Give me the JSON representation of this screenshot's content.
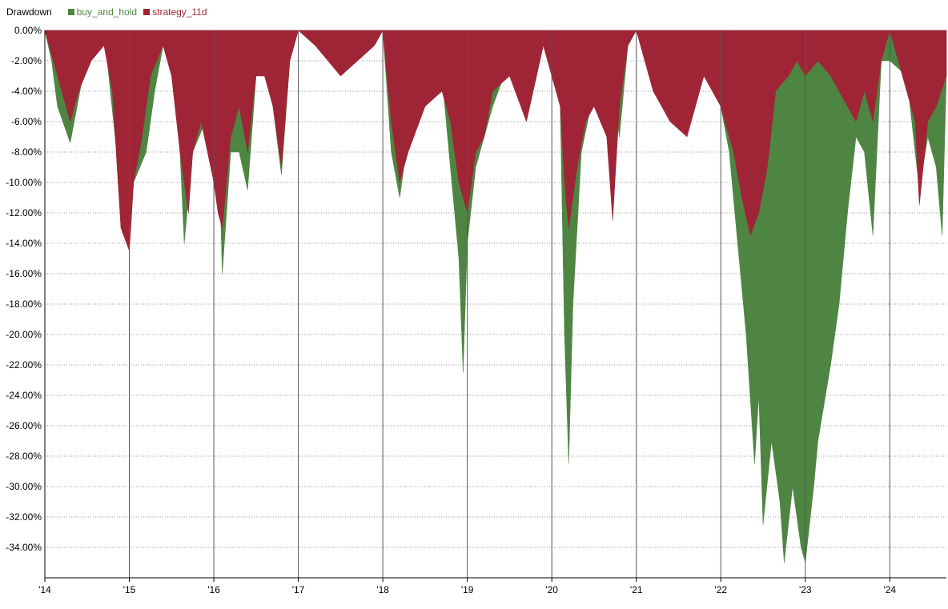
{
  "chart_data": {
    "type": "area",
    "title": "Drawdown",
    "xlabel": "",
    "ylabel": "",
    "x_tick_labels": [
      "'14",
      "'15",
      "'16",
      "'17",
      "'18",
      "'19",
      "'20",
      "'21",
      "'22",
      "'23",
      "'24"
    ],
    "x_range": [
      2014.0,
      2024.67
    ],
    "ylim": [
      -36,
      0
    ],
    "y_tick_step": 2,
    "grid": "horizontal dotted, vertical solid at year marks",
    "legend_placement": "top-left",
    "series": [
      {
        "name": "buy_and_hold",
        "color": "#4e8542",
        "points": [
          [
            2014.0,
            0
          ],
          [
            2014.08,
            -2
          ],
          [
            2014.15,
            -5
          ],
          [
            2014.3,
            -7.4
          ],
          [
            2014.45,
            -3
          ],
          [
            2014.6,
            -1
          ],
          [
            2014.7,
            0
          ],
          [
            2014.85,
            -8
          ],
          [
            2014.95,
            -13
          ],
          [
            2015.0,
            -14.5
          ],
          [
            2015.05,
            -10
          ],
          [
            2015.2,
            -8
          ],
          [
            2015.3,
            -4
          ],
          [
            2015.4,
            -1
          ],
          [
            2015.5,
            -2
          ],
          [
            2015.6,
            -8
          ],
          [
            2015.65,
            -14
          ],
          [
            2015.75,
            -8
          ],
          [
            2015.9,
            -6
          ],
          [
            2016.0,
            -10
          ],
          [
            2016.08,
            -12
          ],
          [
            2016.1,
            -16
          ],
          [
            2016.2,
            -8
          ],
          [
            2016.3,
            -8
          ],
          [
            2016.4,
            -10.5
          ],
          [
            2016.5,
            -3
          ],
          [
            2016.6,
            -2
          ],
          [
            2016.7,
            -5
          ],
          [
            2016.8,
            -9.5
          ],
          [
            2016.9,
            -2
          ],
          [
            2017.0,
            0
          ],
          [
            2017.3,
            -1
          ],
          [
            2017.5,
            -3
          ],
          [
            2017.7,
            -2
          ],
          [
            2017.9,
            -1
          ],
          [
            2018.0,
            0
          ],
          [
            2018.1,
            -8
          ],
          [
            2018.2,
            -11
          ],
          [
            2018.3,
            -7
          ],
          [
            2018.5,
            -5
          ],
          [
            2018.7,
            -3
          ],
          [
            2018.8,
            -9
          ],
          [
            2018.9,
            -15
          ],
          [
            2018.95,
            -22.5
          ],
          [
            2019.0,
            -14
          ],
          [
            2019.1,
            -9
          ],
          [
            2019.3,
            -5
          ],
          [
            2019.5,
            -2
          ],
          [
            2019.7,
            -3
          ],
          [
            2019.9,
            0
          ],
          [
            2020.1,
            -5
          ],
          [
            2020.15,
            -20
          ],
          [
            2020.2,
            -28.5
          ],
          [
            2020.25,
            -18
          ],
          [
            2020.35,
            -8
          ],
          [
            2020.5,
            -4
          ],
          [
            2020.7,
            -3
          ],
          [
            2020.8,
            -7
          ],
          [
            2020.9,
            -1
          ],
          [
            2021.0,
            0
          ],
          [
            2021.2,
            -3
          ],
          [
            2021.4,
            -5
          ],
          [
            2021.6,
            -4
          ],
          [
            2021.8,
            -2
          ],
          [
            2022.0,
            -5
          ],
          [
            2022.1,
            -8
          ],
          [
            2022.2,
            -14
          ],
          [
            2022.3,
            -20
          ],
          [
            2022.4,
            -28.5
          ],
          [
            2022.45,
            -24
          ],
          [
            2022.5,
            -32.5
          ],
          [
            2022.6,
            -27
          ],
          [
            2022.7,
            -31
          ],
          [
            2022.75,
            -35
          ],
          [
            2022.85,
            -30
          ],
          [
            2022.95,
            -34
          ],
          [
            2023.0,
            -35
          ],
          [
            2023.1,
            -30
          ],
          [
            2023.15,
            -27
          ],
          [
            2023.3,
            -22
          ],
          [
            2023.4,
            -18
          ],
          [
            2023.5,
            -12
          ],
          [
            2023.6,
            -7
          ],
          [
            2023.7,
            -8
          ],
          [
            2023.8,
            -13.5
          ],
          [
            2023.9,
            -2
          ],
          [
            2024.0,
            -2
          ],
          [
            2024.2,
            -3
          ],
          [
            2024.35,
            -10.5
          ],
          [
            2024.45,
            -7
          ],
          [
            2024.55,
            -9
          ],
          [
            2024.62,
            -13.5
          ],
          [
            2024.67,
            -3
          ]
        ]
      },
      {
        "name": "strategy_11d",
        "color": "#9f2536",
        "points": [
          [
            2014.0,
            0
          ],
          [
            2014.1,
            -2
          ],
          [
            2014.2,
            -4
          ],
          [
            2014.3,
            -6
          ],
          [
            2014.4,
            -4
          ],
          [
            2014.55,
            -2
          ],
          [
            2014.7,
            -1
          ],
          [
            2014.8,
            -4
          ],
          [
            2014.9,
            -13
          ],
          [
            2015.0,
            -14.5
          ],
          [
            2015.05,
            -10
          ],
          [
            2015.15,
            -7
          ],
          [
            2015.25,
            -3
          ],
          [
            2015.4,
            -1
          ],
          [
            2015.5,
            -3
          ],
          [
            2015.6,
            -8
          ],
          [
            2015.7,
            -12
          ],
          [
            2015.75,
            -8
          ],
          [
            2015.85,
            -6
          ],
          [
            2016.0,
            -10
          ],
          [
            2016.05,
            -12
          ],
          [
            2016.1,
            -13
          ],
          [
            2016.2,
            -7
          ],
          [
            2016.3,
            -5
          ],
          [
            2016.4,
            -8
          ],
          [
            2016.5,
            -3
          ],
          [
            2016.6,
            -3
          ],
          [
            2016.7,
            -5
          ],
          [
            2016.8,
            -9
          ],
          [
            2016.9,
            -2
          ],
          [
            2017.0,
            0
          ],
          [
            2017.2,
            -1
          ],
          [
            2017.5,
            -3
          ],
          [
            2017.7,
            -2
          ],
          [
            2017.9,
            -1
          ],
          [
            2018.0,
            0
          ],
          [
            2018.1,
            -6
          ],
          [
            2018.2,
            -10
          ],
          [
            2018.3,
            -8
          ],
          [
            2018.5,
            -5
          ],
          [
            2018.7,
            -4
          ],
          [
            2018.8,
            -6
          ],
          [
            2018.9,
            -10
          ],
          [
            2019.0,
            -12
          ],
          [
            2019.1,
            -8
          ],
          [
            2019.2,
            -7
          ],
          [
            2019.3,
            -4
          ],
          [
            2019.5,
            -3
          ],
          [
            2019.7,
            -6
          ],
          [
            2019.9,
            -1
          ],
          [
            2020.1,
            -5
          ],
          [
            2020.15,
            -10
          ],
          [
            2020.2,
            -13
          ],
          [
            2020.3,
            -9
          ],
          [
            2020.4,
            -6
          ],
          [
            2020.5,
            -5
          ],
          [
            2020.65,
            -7
          ],
          [
            2020.72,
            -12.5
          ],
          [
            2020.8,
            -5
          ],
          [
            2020.9,
            -1
          ],
          [
            2021.0,
            0
          ],
          [
            2021.2,
            -4
          ],
          [
            2021.4,
            -6
          ],
          [
            2021.6,
            -7
          ],
          [
            2021.8,
            -3
          ],
          [
            2022.0,
            -5
          ],
          [
            2022.15,
            -8
          ],
          [
            2022.25,
            -11
          ],
          [
            2022.35,
            -13.5
          ],
          [
            2022.45,
            -12
          ],
          [
            2022.55,
            -9
          ],
          [
            2022.65,
            -4
          ],
          [
            2022.8,
            -3
          ],
          [
            2022.9,
            -2
          ],
          [
            2023.0,
            -3
          ],
          [
            2023.15,
            -2
          ],
          [
            2023.3,
            -3
          ],
          [
            2023.5,
            -5
          ],
          [
            2023.6,
            -6
          ],
          [
            2023.7,
            -4
          ],
          [
            2023.8,
            -6
          ],
          [
            2023.9,
            -2
          ],
          [
            2024.0,
            0
          ],
          [
            2024.15,
            -3
          ],
          [
            2024.3,
            -6
          ],
          [
            2024.35,
            -11.5
          ],
          [
            2024.45,
            -6
          ],
          [
            2024.55,
            -5
          ],
          [
            2024.67,
            -3
          ]
        ]
      }
    ]
  }
}
